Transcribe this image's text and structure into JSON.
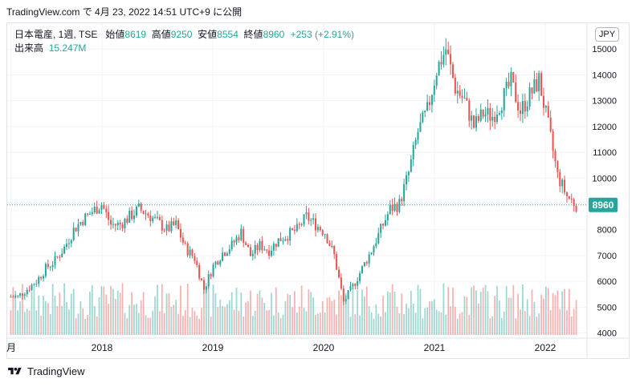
{
  "header": {
    "published_line": "TradingView.com で 4月 23, 2022 14:51 UTC+9 に公開"
  },
  "legend": {
    "symbol_line": "日本電産, 1週, TSE",
    "open_label": "始値",
    "open_value": "8619",
    "high_label": "高値",
    "high_value": "9250",
    "low_label": "安値",
    "low_value": "8554",
    "close_label": "終値",
    "close_value": "8960",
    "change": "+253 (+2.91%)",
    "volume_label": "出来高",
    "volume_value": "15.247M"
  },
  "currency_button": "JPY",
  "footer": {
    "brand": "TradingView"
  },
  "colors": {
    "up": "#26a69a",
    "down": "#ef5350",
    "price_line": "#26a69a",
    "grid": "#f0f3fa"
  },
  "chart_data": {
    "type": "candlestick",
    "title": "",
    "xlabel": "",
    "ylabel": "",
    "x_ticks": [
      "月",
      "2018",
      "2019",
      "2020",
      "2021",
      "2022"
    ],
    "y_ticks": [
      4000,
      5000,
      6000,
      7000,
      8000,
      9000,
      10000,
      11000,
      12000,
      13000,
      14000,
      15000
    ],
    "ylim": [
      3800,
      16000
    ],
    "current_price": 8960,
    "current_price_label": "8960",
    "grid": true,
    "series": [
      {
        "name": "",
        "x": [
          "2017-04",
          "2017-05",
          "2017-06",
          "2017-07",
          "2017-08",
          "2017-09",
          "2017-10",
          "2017-11",
          "2017-12",
          "2018-01",
          "2018-02",
          "2018-03",
          "2018-04",
          "2018-05",
          "2018-06",
          "2018-07",
          "2018-08",
          "2018-09",
          "2018-10",
          "2018-11",
          "2018-12",
          "2019-01",
          "2019-02",
          "2019-03",
          "2019-04",
          "2019-05",
          "2019-06",
          "2019-07",
          "2019-08",
          "2019-09",
          "2019-10",
          "2019-11",
          "2019-12",
          "2020-01",
          "2020-02",
          "2020-03",
          "2020-04",
          "2020-05",
          "2020-06",
          "2020-07",
          "2020-08",
          "2020-09",
          "2020-10",
          "2020-11",
          "2020-12",
          "2021-01",
          "2021-02",
          "2021-03",
          "2021-04",
          "2021-05",
          "2021-06",
          "2021-07",
          "2021-08",
          "2021-09",
          "2021-10",
          "2021-11",
          "2021-12",
          "2022-01",
          "2022-02",
          "2022-03",
          "2022-04"
        ],
        "close": [
          5400,
          5700,
          6000,
          6500,
          6800,
          7300,
          8000,
          8400,
          8700,
          9000,
          8200,
          8200,
          8500,
          8800,
          8600,
          8300,
          8000,
          8200,
          7300,
          6900,
          5700,
          6600,
          7100,
          7400,
          7900,
          7000,
          7400,
          7200,
          7600,
          7800,
          8000,
          8500,
          8200,
          7900,
          7000,
          5200,
          5800,
          6500,
          7200,
          8000,
          8800,
          9000,
          10200,
          11800,
          12600,
          14200,
          15000,
          13500,
          13000,
          12000,
          12500,
          12400,
          13000,
          13700,
          12600,
          13200,
          13800,
          12000,
          10100,
          9300,
          8960
        ]
      }
    ],
    "volume_label": "出来高"
  }
}
